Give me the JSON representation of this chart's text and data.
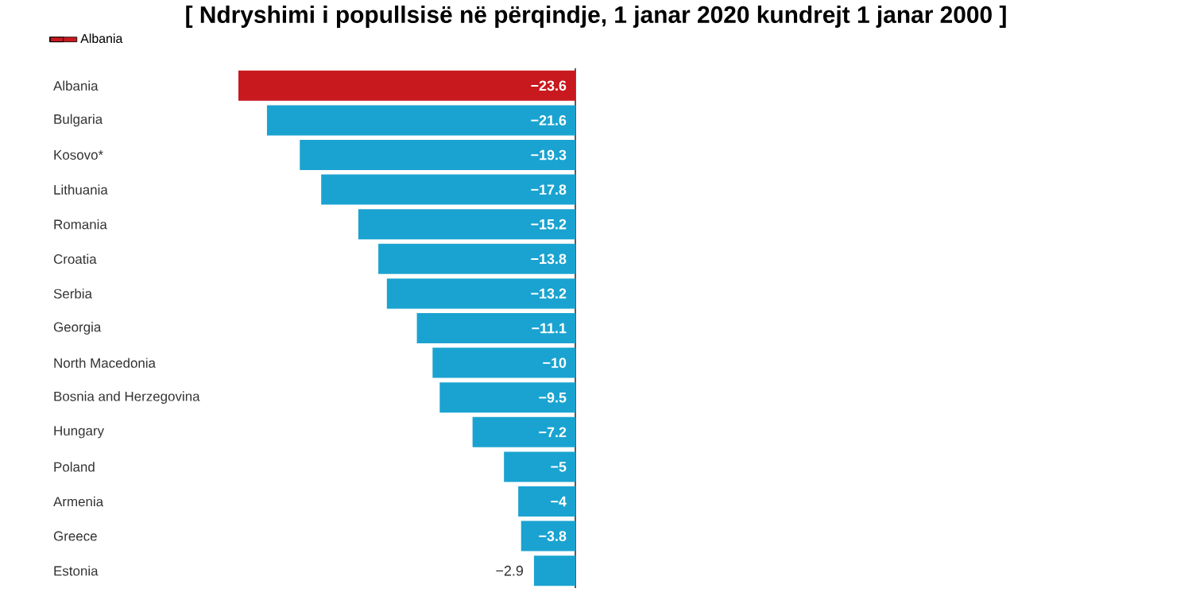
{
  "chart_data": {
    "type": "bar",
    "orientation": "horizontal",
    "title": "[ Ndryshimi i popullsisë në përqindje, 1 janar 2020 kundrejt 1 janar 2000 ]",
    "legend": "top left",
    "categories": [
      "Albania",
      "Bulgaria",
      "Kosovo*",
      "Lithuania",
      "Romania",
      "Croatia",
      "Serbia",
      "Georgia",
      "North Macedonia",
      "Bosnia and Herzegovina",
      "Hungary",
      "Poland",
      "Armenia",
      "Greece",
      "Estonia"
    ],
    "series": [
      {
        "name": "Albania",
        "color": "#c8191e",
        "values": [
          -23.6,
          null,
          null,
          null,
          null,
          null,
          null,
          null,
          null,
          null,
          null,
          null,
          null,
          null,
          null
        ],
        "value_labels": [
          "−23.6",
          null,
          null,
          null,
          null,
          null,
          null,
          null,
          null,
          null,
          null,
          null,
          null,
          null,
          null
        ]
      },
      {
        "color": "#1aa3d0",
        "values": [
          null,
          -21.6,
          -19.3,
          -17.8,
          -15.2,
          -13.8,
          -13.2,
          -11.1,
          -10,
          -9.5,
          -7.2,
          -5,
          -4,
          -3.8,
          -2.9
        ],
        "value_labels": [
          null,
          "−21.6",
          "−19.3",
          "−17.8",
          "−15.2",
          "−13.8",
          "−13.2",
          "−11.1",
          "−10",
          "−9.5",
          "−7.2",
          "−5",
          "−4",
          "−3.8",
          "−2.9"
        ]
      }
    ]
  }
}
